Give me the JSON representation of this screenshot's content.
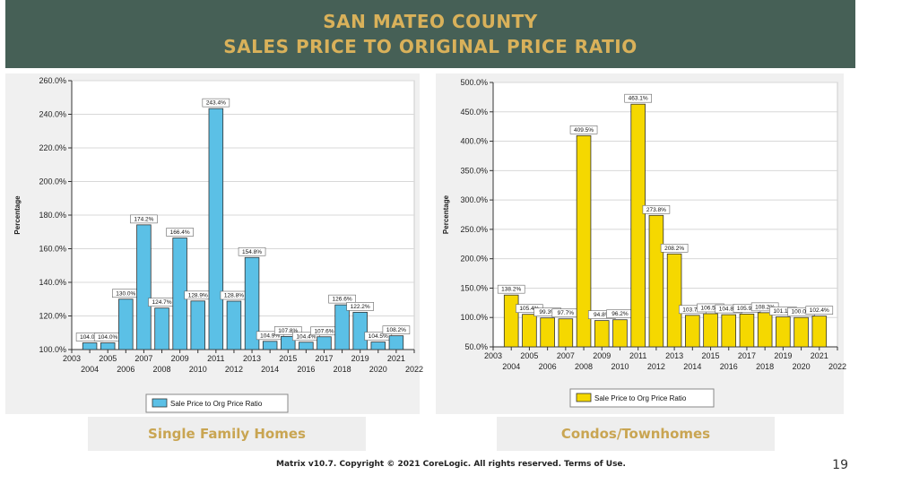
{
  "title": {
    "line1": "SAN MATEO COUNTY",
    "line2": "SALES PRICE TO ORIGINAL PRICE RATIO"
  },
  "captions": {
    "left": "Single Family Homes",
    "right": "Condos/Townhomes"
  },
  "footer": {
    "copyright": "Matrix v10.7. Copyright © 2021 CoreLogic. All rights reserved. Terms of Use.",
    "page_number": "19"
  },
  "colors": {
    "banner": "#466056",
    "title_text": "#d9b15a",
    "sfh_bar": "#5bc0e6",
    "condo_bar": "#f5d800",
    "plot_bg": "#ffffff",
    "panel_bg": "#f0f0f0",
    "caption_text": "#c9a552"
  },
  "chart_data": [
    {
      "type": "bar",
      "ylabel": "Percentage",
      "ylim": [
        100,
        260
      ],
      "yticks": [
        100,
        120,
        140,
        160,
        180,
        200,
        220,
        240,
        260
      ],
      "categories": [
        "2004",
        "2005",
        "2006",
        "2007",
        "2008",
        "2009",
        "2010",
        "2011",
        "2012",
        "2013",
        "2014",
        "2015",
        "2016",
        "2017",
        "2018",
        "2019",
        "2020",
        "2021"
      ],
      "x_ticks_top": [
        "2003",
        "2005",
        "2007",
        "2009",
        "2011",
        "2013",
        "2015",
        "2017",
        "2019",
        "2021"
      ],
      "x_ticks_bottom": [
        "2004",
        "2006",
        "2008",
        "2010",
        "2012",
        "2014",
        "2016",
        "2018",
        "2020",
        "2022"
      ],
      "series": [
        {
          "name": "Sale Price to Org Price Ratio",
          "values": [
            104.0,
            104.0,
            130.0,
            174.2,
            124.7,
            166.4,
            128.9,
            243.4,
            128.8,
            154.8,
            104.9,
            107.8,
            104.4,
            107.6,
            126.6,
            122.2,
            104.5,
            108.2
          ],
          "labels": [
            "104.0%",
            "104.0%",
            "130.0%",
            "174.2%",
            "124.7%",
            "166.4%",
            "128.9%",
            "243.4%",
            "128.8%",
            "154.8%",
            "104.9%",
            "107.8%",
            "104.4%",
            "107.6%",
            "126.6%",
            "122.2%",
            "104.5%",
            "108.2%"
          ]
        }
      ],
      "grid": true,
      "legend": "bottom-center"
    },
    {
      "type": "bar",
      "ylabel": "Percentage",
      "ylim": [
        50,
        500
      ],
      "yticks": [
        50,
        100,
        150,
        200,
        250,
        300,
        350,
        400,
        450,
        500
      ],
      "categories": [
        "2004",
        "2005",
        "2006",
        "2007",
        "2008",
        "2009",
        "2010",
        "2011",
        "2012",
        "2013",
        "2014",
        "2015",
        "2016",
        "2017",
        "2018",
        "2019",
        "2020",
        "2021"
      ],
      "x_ticks_top": [
        "2003",
        "2005",
        "2007",
        "2009",
        "2011",
        "2013",
        "2015",
        "2017",
        "2019",
        "2021"
      ],
      "x_ticks_bottom": [
        "2004",
        "2006",
        "2008",
        "2010",
        "2012",
        "2014",
        "2016",
        "2018",
        "2020",
        "2022"
      ],
      "series": [
        {
          "name": "Sale Price to Org Price Ratio",
          "values": [
            138.2,
            105.4,
            99.3,
            97.7,
            409.5,
            94.8,
            96.2,
            463.1,
            273.8,
            208.2,
            103.7,
            106.5,
            104.8,
            105.9,
            108.2,
            101.1,
            100.0,
            102.4
          ],
          "labels": [
            "138.2%",
            "105.4%",
            "99.3%",
            "97.7%",
            "409.5%",
            "94.8%",
            "96.2%",
            "463.1%",
            "273.8%",
            "208.2%",
            "103.7%",
            "106.5%",
            "104.8%",
            "105.9%",
            "108.2%",
            "101.1%",
            "100.0%",
            "102.4%"
          ]
        }
      ],
      "grid": true,
      "legend": "bottom-center"
    }
  ]
}
